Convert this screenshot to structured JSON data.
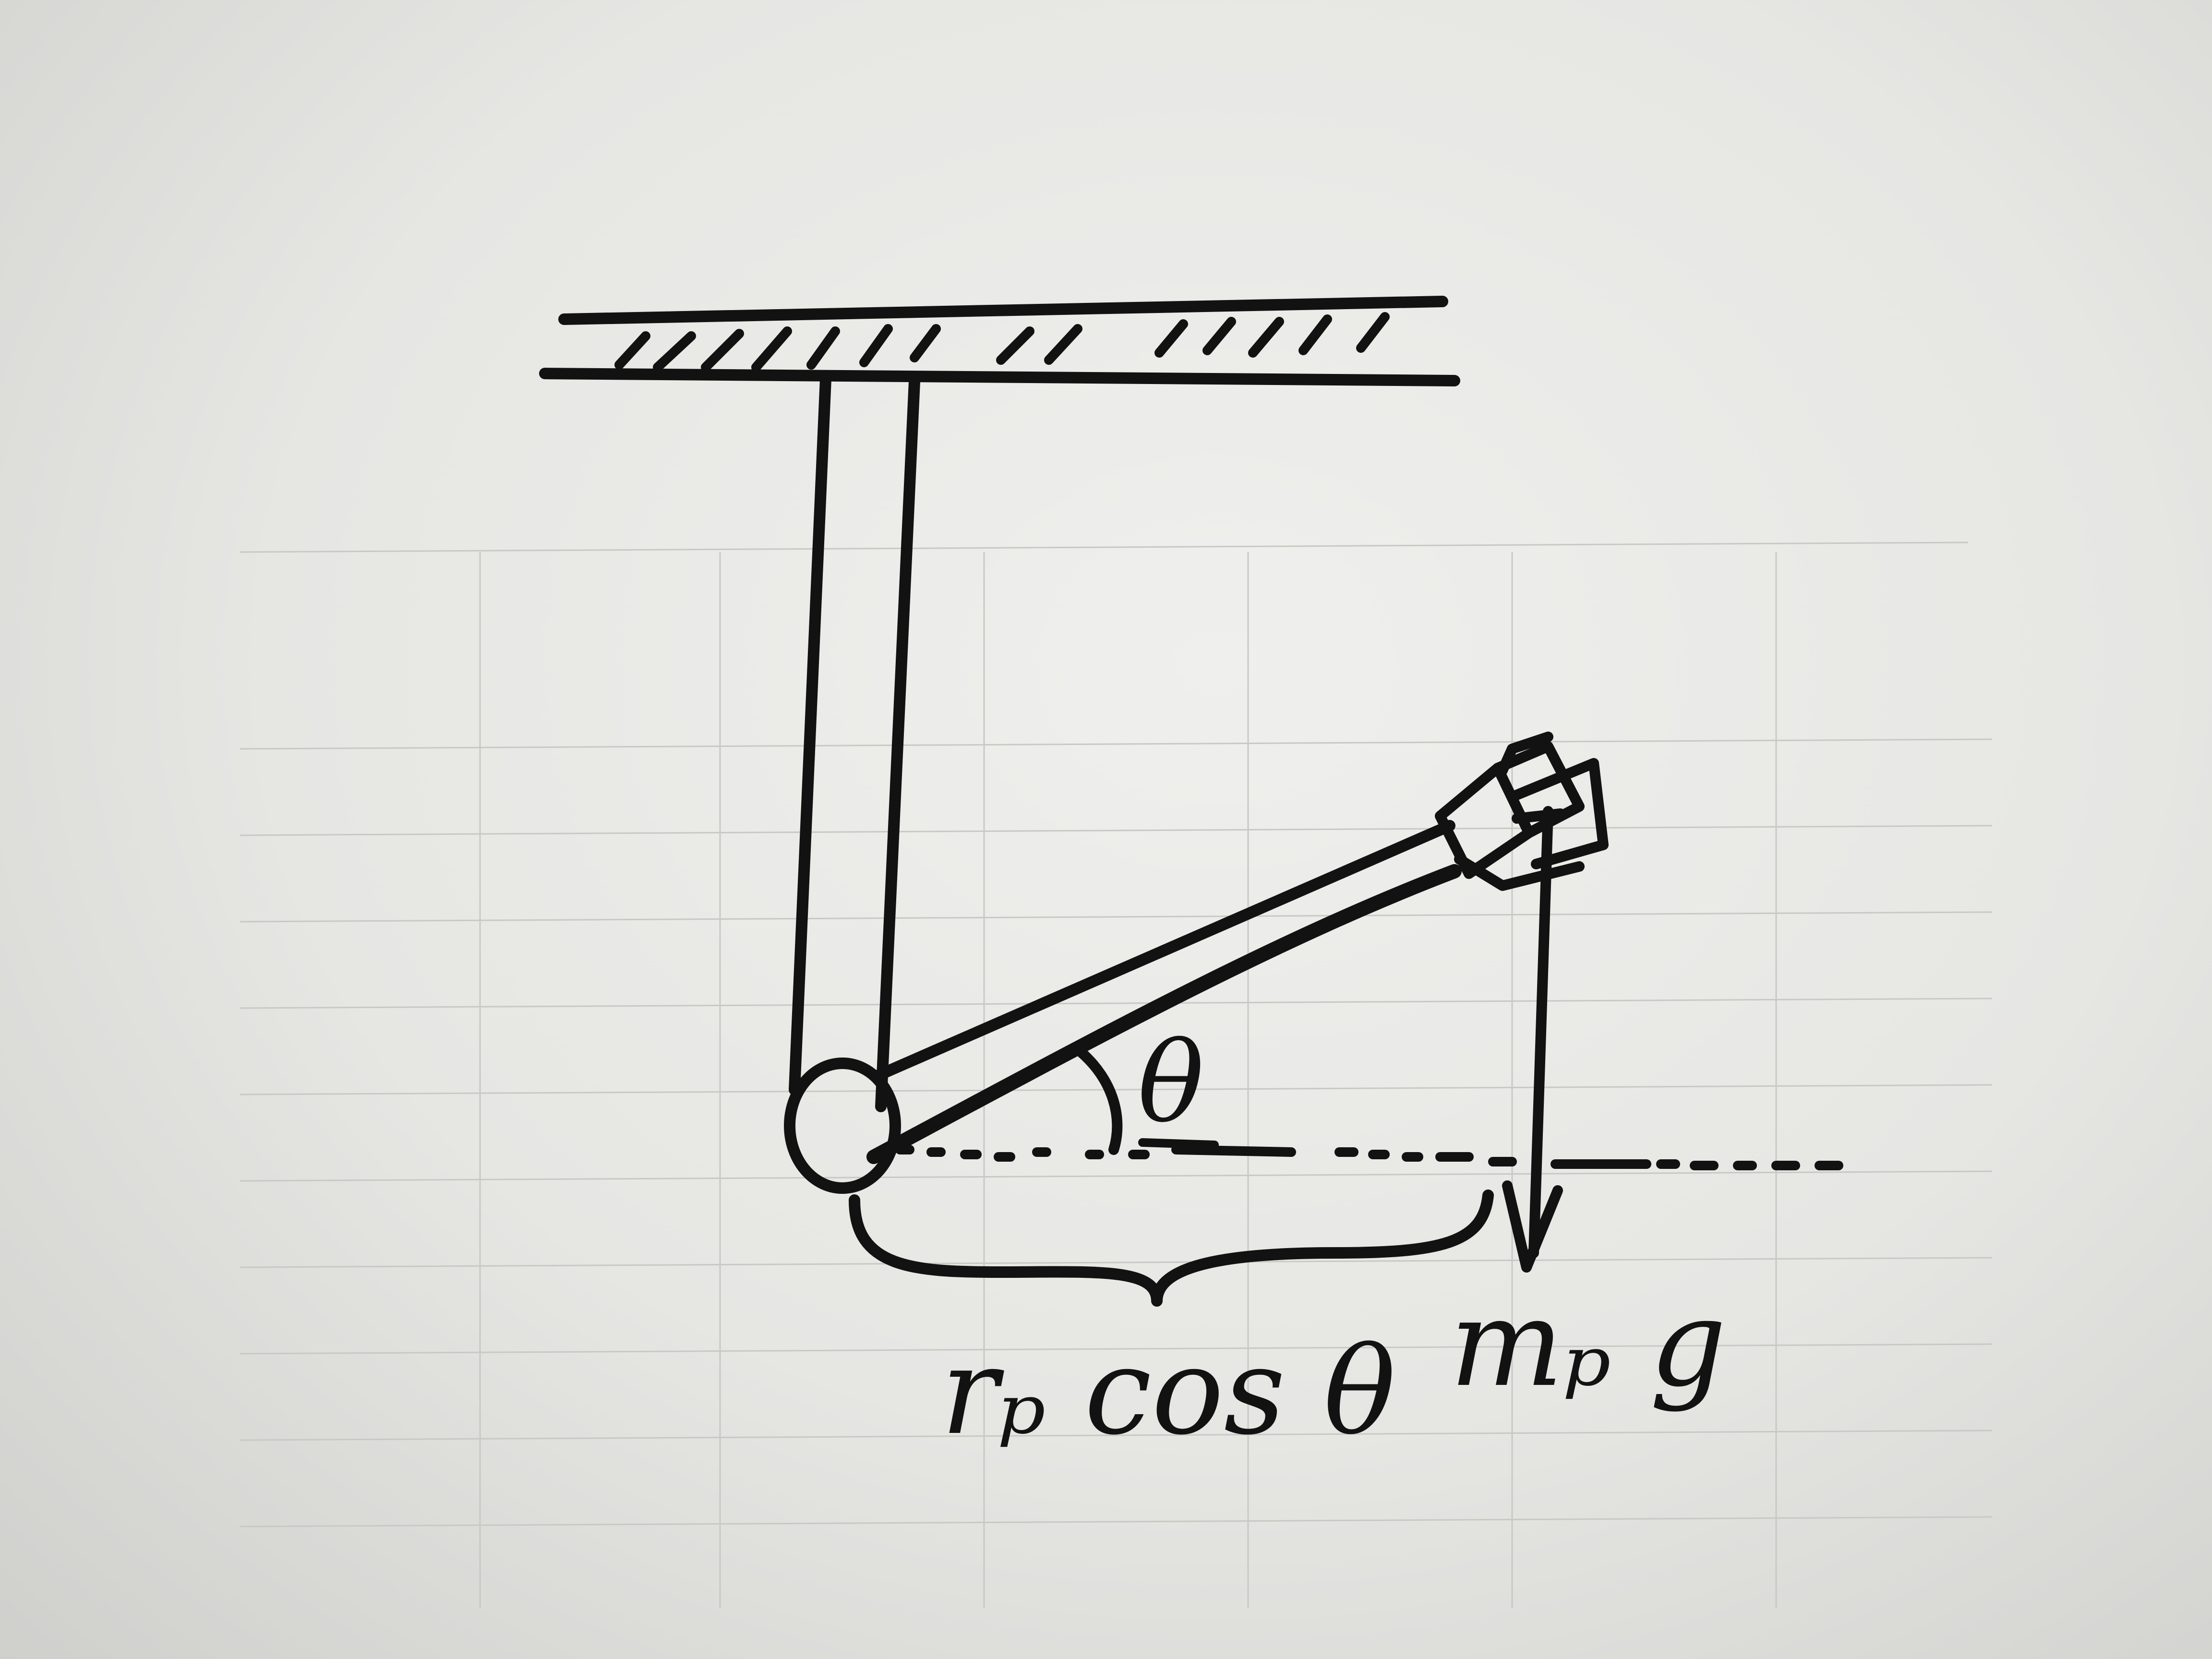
{
  "diagram": {
    "labels": {
      "angle": "θ",
      "moment_arm": "rₚ cos θ",
      "force": "mₚ g"
    }
  }
}
